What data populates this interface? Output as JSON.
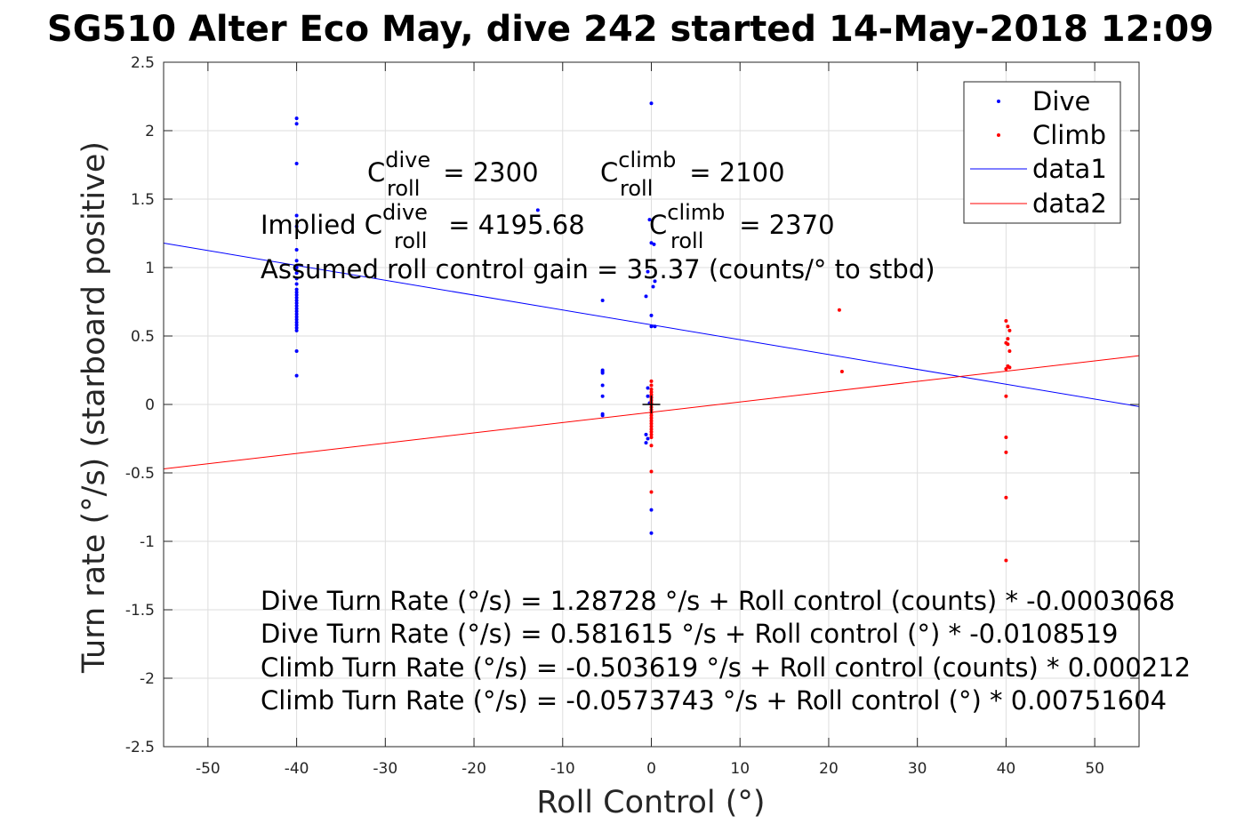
{
  "chart_data": {
    "type": "scatter",
    "title": "SG510 Alter Eco May, dive 242 started 14-May-2018 12:09",
    "xlabel": "Roll Control (°)",
    "ylabel": "Turn rate (°/s) (starboard positive)",
    "xlim": [
      -55,
      55
    ],
    "ylim": [
      -2.5,
      2.5
    ],
    "xticks": [
      -50,
      -40,
      -30,
      -20,
      -10,
      0,
      10,
      20,
      30,
      40,
      50
    ],
    "yticks": [
      -2.5,
      -2,
      -1.5,
      -1,
      -0.5,
      0,
      0.5,
      1,
      1.5,
      2,
      2.5
    ],
    "grid": true,
    "legend_position": "top-right",
    "series": [
      {
        "name": "Dive",
        "kind": "points",
        "color": "#0000ff",
        "points": [
          [
            -40,
            2.09
          ],
          [
            -40,
            2.05
          ],
          [
            -40,
            1.76
          ],
          [
            -40,
            1.38
          ],
          [
            -40,
            1.3
          ],
          [
            -40,
            1.13
          ],
          [
            -40,
            1.05
          ],
          [
            -40,
            1.0
          ],
          [
            -40,
            0.96
          ],
          [
            -40,
            0.92
          ],
          [
            -40,
            0.88
          ],
          [
            -40,
            0.84
          ],
          [
            -40,
            0.82
          ],
          [
            -40,
            0.8
          ],
          [
            -40,
            0.78
          ],
          [
            -40,
            0.76
          ],
          [
            -40,
            0.74
          ],
          [
            -40,
            0.72
          ],
          [
            -40,
            0.7
          ],
          [
            -40,
            0.68
          ],
          [
            -40,
            0.66
          ],
          [
            -40,
            0.64
          ],
          [
            -40,
            0.62
          ],
          [
            -40,
            0.6
          ],
          [
            -40,
            0.58
          ],
          [
            -40,
            0.56
          ],
          [
            -40,
            0.54
          ],
          [
            -40,
            0.39
          ],
          [
            -40,
            0.21
          ],
          [
            -12.8,
            1.42
          ],
          [
            -5.5,
            0.76
          ],
          [
            -5.5,
            0.25
          ],
          [
            -5.5,
            0.24
          ],
          [
            -5.5,
            0.23
          ],
          [
            -5.5,
            0.14
          ],
          [
            -5.5,
            0.06
          ],
          [
            -5.5,
            -0.07
          ],
          [
            -5.5,
            -0.08
          ],
          [
            0,
            2.2
          ],
          [
            -0.2,
            1.35
          ],
          [
            0,
            1.18
          ],
          [
            0.3,
            1.17
          ],
          [
            -0.4,
            0.97
          ],
          [
            0.4,
            0.9
          ],
          [
            0.2,
            0.86
          ],
          [
            -0.6,
            0.79
          ],
          [
            0,
            0.65
          ],
          [
            0,
            0.57
          ],
          [
            0.4,
            0.57
          ],
          [
            -0.4,
            0.12
          ],
          [
            -0.4,
            0.06
          ],
          [
            0,
            0.05
          ],
          [
            -0.2,
            0.01
          ],
          [
            -0.6,
            -0.22
          ],
          [
            -0.4,
            -0.25
          ],
          [
            -0.6,
            -0.28
          ],
          [
            0,
            -0.77
          ],
          [
            0,
            -0.94
          ]
        ]
      },
      {
        "name": "Climb",
        "kind": "points",
        "color": "#ff0000",
        "points": [
          [
            0,
            0.17
          ],
          [
            0,
            0.14
          ],
          [
            0,
            0.11
          ],
          [
            0,
            0.09
          ],
          [
            0,
            0.07
          ],
          [
            0,
            0.05
          ],
          [
            0,
            0.03
          ],
          [
            0,
            0.01
          ],
          [
            0,
            0.0
          ],
          [
            0,
            -0.02
          ],
          [
            0,
            -0.04
          ],
          [
            0,
            -0.06
          ],
          [
            0,
            -0.08
          ],
          [
            0,
            -0.1
          ],
          [
            0,
            -0.12
          ],
          [
            0,
            -0.14
          ],
          [
            0,
            -0.16
          ],
          [
            0,
            -0.18
          ],
          [
            0,
            -0.2
          ],
          [
            0,
            -0.22
          ],
          [
            0,
            -0.24
          ],
          [
            0,
            -0.3
          ],
          [
            0,
            -0.49
          ],
          [
            0,
            -0.64
          ],
          [
            21.2,
            0.69
          ],
          [
            21.5,
            0.24
          ],
          [
            40,
            0.61
          ],
          [
            40.2,
            0.57
          ],
          [
            40.4,
            0.54
          ],
          [
            40.2,
            0.48
          ],
          [
            40,
            0.45
          ],
          [
            40.2,
            0.44
          ],
          [
            40.4,
            0.39
          ],
          [
            40.2,
            0.28
          ],
          [
            40.4,
            0.27
          ],
          [
            40,
            0.26
          ],
          [
            40,
            0.06
          ],
          [
            40,
            -0.24
          ],
          [
            40,
            -0.35
          ],
          [
            40,
            -0.68
          ],
          [
            40,
            -1.14
          ]
        ]
      },
      {
        "name": "data1",
        "kind": "line",
        "color": "#0000ff",
        "intercept": 0.581615,
        "slope": -0.0108519
      },
      {
        "name": "data2",
        "kind": "line",
        "color": "#ff0000",
        "intercept": -0.0573743,
        "slope": 0.00751604
      }
    ],
    "marker": {
      "symbol": "+",
      "x": 0,
      "y": 0,
      "color": "#000000"
    },
    "annotations": {
      "c_dive": {
        "main": "C",
        "sup": "dive",
        "sub": "roll",
        "rest": " = 2300"
      },
      "c_climb": {
        "main": "C",
        "sup": "climb",
        "sub": "roll",
        "rest": " = 2100"
      },
      "implied_dive": {
        "prefix": "Implied C",
        "sup": "dive",
        "sub": "roll",
        "rest": " = 4195.68"
      },
      "implied_climb": {
        "main": "C",
        "sup": "climb",
        "sub": "roll",
        "rest": " = 2370"
      },
      "gain": "Assumed roll control gain = 35.37 (counts/° to stbd)",
      "equations": [
        "Dive Turn Rate (°/s) = 1.28728 °/s + Roll control (counts) * -0.0003068",
        "Dive Turn Rate (°/s) = 0.581615 °/s + Roll control (°) * -0.0108519",
        "Climb Turn Rate (°/s) = -0.503619 °/s + Roll control (counts) * 0.000212",
        "Climb Turn Rate (°/s) = -0.0573743 °/s + Roll control (°) * 0.00751604"
      ]
    }
  }
}
